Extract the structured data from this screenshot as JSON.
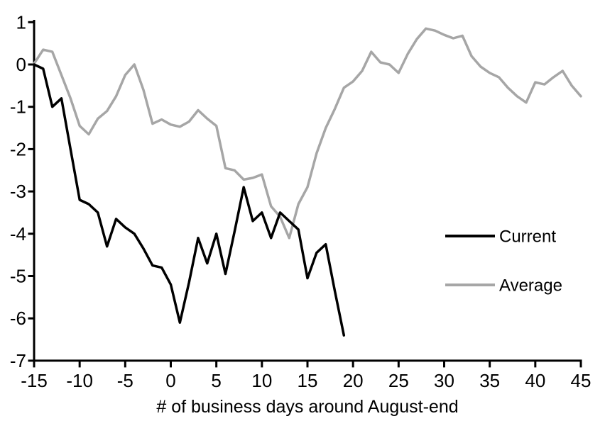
{
  "chart_data": {
    "type": "line",
    "title": "",
    "xlabel": "# of business days around August-end",
    "ylabel": "",
    "xlim": [
      -15,
      45
    ],
    "ylim": [
      -7,
      1
    ],
    "x_ticks": [
      -15,
      -10,
      -5,
      0,
      5,
      10,
      15,
      20,
      25,
      30,
      35,
      40,
      45
    ],
    "y_ticks": [
      1,
      0,
      -1,
      -2,
      -3,
      -4,
      -5,
      -6,
      -7
    ],
    "grid": false,
    "legend_position": "middle-right",
    "series": [
      {
        "name": "Current",
        "color": "#000000",
        "x_start": -15,
        "x_step": 1,
        "values": [
          0.0,
          -0.1,
          -1.0,
          -0.8,
          -2.0,
          -3.2,
          -3.3,
          -3.5,
          -4.3,
          -3.65,
          -3.85,
          -4.0,
          -4.35,
          -4.75,
          -4.8,
          -5.2,
          -6.1,
          -5.15,
          -4.1,
          -4.7,
          -4.0,
          -4.95,
          -3.95,
          -2.9,
          -3.7,
          -3.5,
          -4.1,
          -3.5,
          -3.7,
          -3.9,
          -5.05,
          -4.45,
          -4.25,
          -5.35,
          -6.4
        ]
      },
      {
        "name": "Average",
        "color": "#A6A6A6",
        "x_start": -15,
        "x_step": 1,
        "values": [
          0.02,
          0.35,
          0.3,
          -0.25,
          -0.8,
          -1.45,
          -1.65,
          -1.28,
          -1.1,
          -0.75,
          -0.25,
          0.0,
          -0.6,
          -1.4,
          -1.3,
          -1.42,
          -1.47,
          -1.35,
          -1.08,
          -1.28,
          -1.45,
          -2.45,
          -2.5,
          -2.72,
          -2.68,
          -2.6,
          -3.35,
          -3.6,
          -4.1,
          -3.3,
          -2.9,
          -2.1,
          -1.5,
          -1.05,
          -0.55,
          -0.4,
          -0.15,
          0.3,
          0.05,
          0.0,
          -0.2,
          0.25,
          0.6,
          0.85,
          0.8,
          0.7,
          0.62,
          0.68,
          0.2,
          -0.05,
          -0.2,
          -0.3,
          -0.55,
          -0.75,
          -0.9,
          -0.42,
          -0.47,
          -0.3,
          -0.15,
          -0.5,
          -0.75
        ]
      }
    ]
  },
  "colors": {
    "background": "#FFFFFF",
    "axis": "#000000",
    "tick_text": "#000000"
  }
}
